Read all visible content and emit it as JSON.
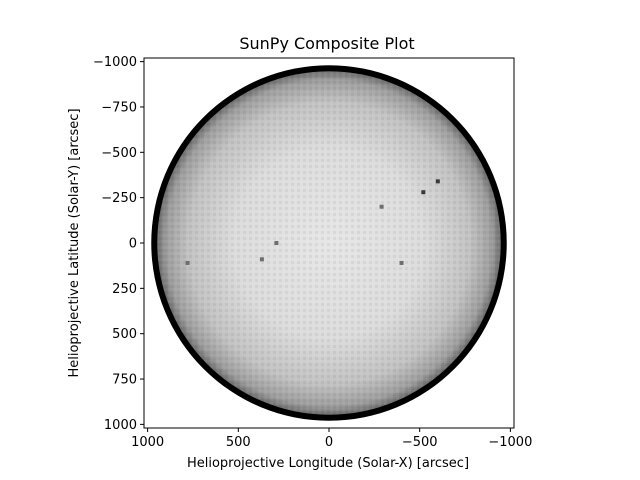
{
  "chart_data": {
    "type": "heatmap",
    "title": "SunPy Composite Plot",
    "xlabel": "Helioprojective Longitude (Solar-X) [arcsec]",
    "ylabel": "Helioprojective Latitude (Solar-Y) [arcsec]",
    "xlim": [
      1020,
      -1020
    ],
    "ylim": [
      -1020,
      1020
    ],
    "x_ticks": [
      1000,
      500,
      0,
      -500,
      -1000
    ],
    "x_tick_labels": [
      "1000",
      "500",
      "0",
      "−500",
      "−1000"
    ],
    "y_ticks": [
      -1000,
      -750,
      -500,
      -250,
      0,
      250,
      500,
      750,
      1000
    ],
    "y_tick_labels": [
      "−1000",
      "−750",
      "−500",
      "−250",
      "0",
      "250",
      "500",
      "750",
      "1000"
    ],
    "colormap": "grayscale",
    "solar_radius_arcsec": 980,
    "background_color": "#ffffff",
    "limb_color": "#000000",
    "dark_spots": [
      {
        "x": -600,
        "y": -340
      },
      {
        "x": -520,
        "y": -280
      },
      {
        "x": -400,
        "y": 110
      },
      {
        "x": 780,
        "y": 110
      },
      {
        "x": 370,
        "y": 90
      },
      {
        "x": 290,
        "y": 0
      },
      {
        "x": -290,
        "y": -200
      }
    ]
  }
}
